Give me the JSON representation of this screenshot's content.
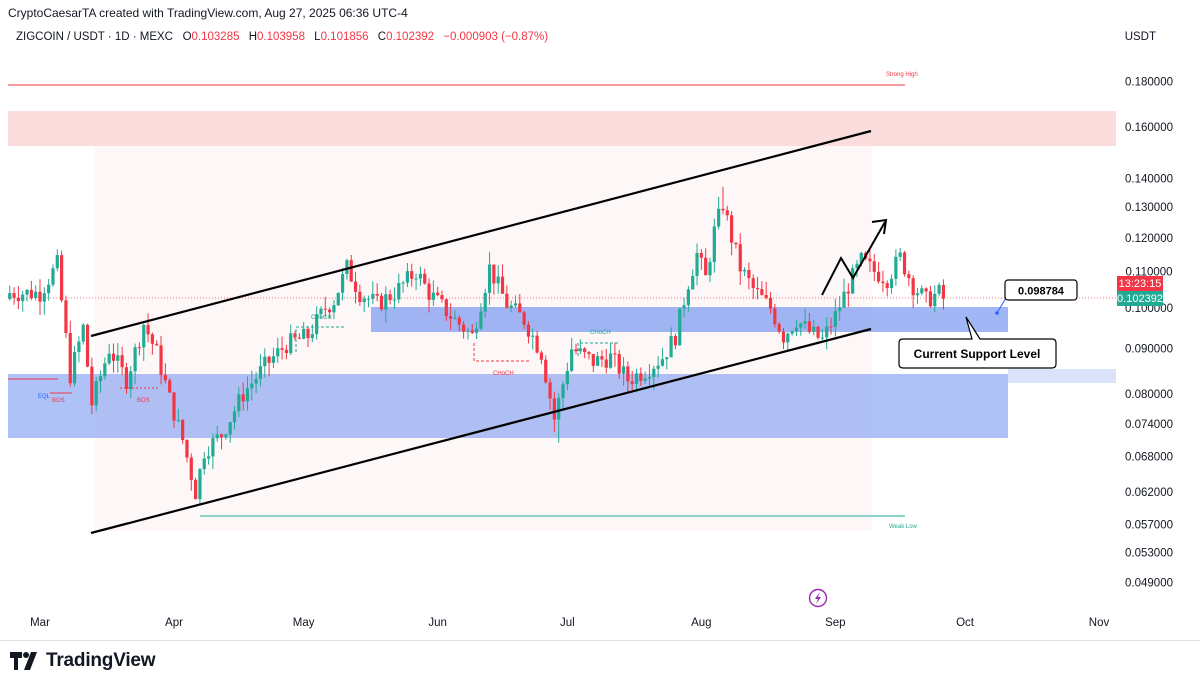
{
  "header": {
    "credit": "CryptoCaesarTA created with TradingView.com, Aug 27, 2025 06:36 UTC-4",
    "symbol": "ZIGCOIN / USDT · 1D · MEXC",
    "ohlc": [
      {
        "k": "O",
        "v": "0.103285"
      },
      {
        "k": "H",
        "v": "0.103958"
      },
      {
        "k": "L",
        "v": "0.101856"
      },
      {
        "k": "C",
        "v": "0.102392"
      }
    ],
    "change": "−0.000903 (−0.87%)",
    "currency": "USDT"
  },
  "brand": {
    "name": "TradingView",
    "icon": "tradingview-logo-icon"
  },
  "colors": {
    "up": "#22ab94",
    "down": "#f23645",
    "support_zone": "#6d8ff0",
    "supply_zone": "#fbd4d4",
    "channel": "#000000"
  },
  "chart_data": {
    "type": "candlestick",
    "title": "",
    "price_axis": {
      "scale": "log",
      "ticks": [
        "0.180000",
        "0.160000",
        "0.140000",
        "0.130000",
        "0.120000",
        "0.110000",
        "0.100000",
        "0.090000",
        "0.080000",
        "0.074000",
        "0.068000",
        "0.062000",
        "0.057000",
        "0.053000",
        "0.049000"
      ],
      "last_price_label": "0.102392",
      "countdown_label": "13:23:15"
    },
    "time_axis": {
      "labels": [
        "Mar",
        "Apr",
        "May",
        "Jun",
        "Jul",
        "Aug",
        "Sep",
        "Oct",
        "Nov"
      ]
    },
    "candles": [],
    "annotations": {
      "strong_high": {
        "label": "Strong High",
        "price": 0.18
      },
      "weak_low": {
        "label": "Weak Low",
        "price": 0.058
      },
      "current_price_callout": "0.098784",
      "support_label": "Current Support Level",
      "structure_labels": [
        {
          "text": "EQL",
          "color": "#2962ff"
        },
        {
          "text": "BOS",
          "color": "#f23645"
        },
        {
          "text": "BOS",
          "color": "#f23645"
        },
        {
          "text": "CHoCH",
          "color": "#22ab94"
        },
        {
          "text": "CHoCH",
          "color": "#f23645"
        },
        {
          "text": "CHoCH",
          "color": "#22ab94"
        }
      ]
    }
  }
}
